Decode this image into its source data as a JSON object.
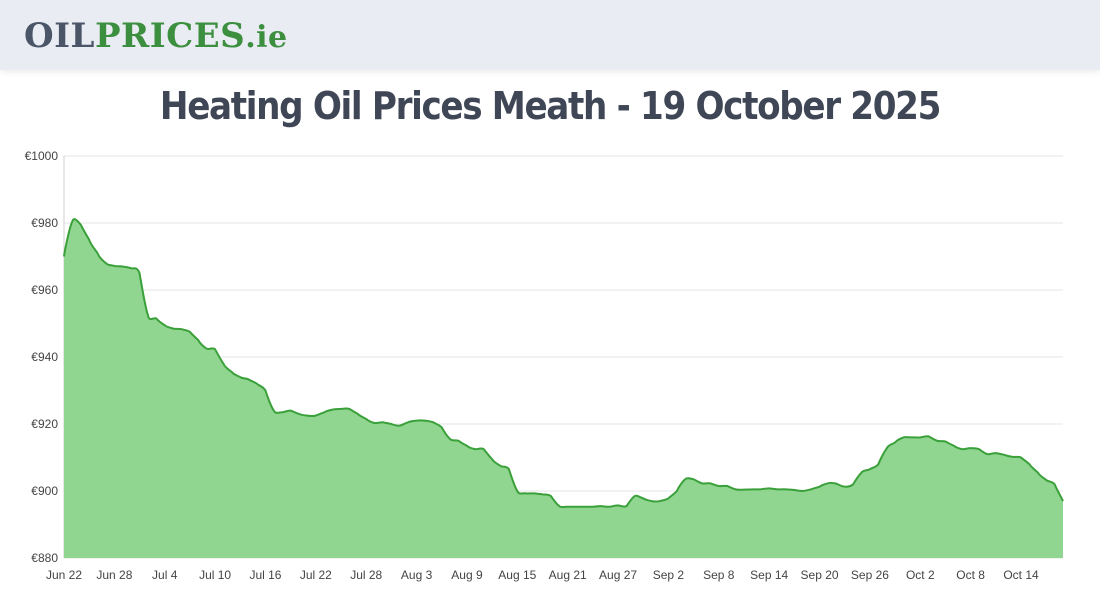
{
  "logo": {
    "part1": "OIL",
    "part2": "PRICES",
    "part3": ".ie"
  },
  "title": "Heating Oil Prices Meath - 19 October 2025",
  "colors": {
    "line": "#3aa03a",
    "fill": "#90d590",
    "grid": "#e6e6e6",
    "header_bg": "#e9ecf3"
  },
  "chart_data": {
    "type": "area",
    "title": "Heating Oil Prices Meath - 19 October 2025",
    "xlabel": "",
    "ylabel": "",
    "ylim": [
      880,
      1000
    ],
    "yticks": [
      880,
      900,
      920,
      940,
      960,
      980,
      1000
    ],
    "ytick_labels": [
      "€880",
      "€900",
      "€920",
      "€940",
      "€960",
      "€980",
      "€1000"
    ],
    "xticks": [
      {
        "day": 0,
        "label": "Jun 22"
      },
      {
        "day": 6,
        "label": "Jun 28"
      },
      {
        "day": 12,
        "label": "Jul 4"
      },
      {
        "day": 18,
        "label": "Jul 10"
      },
      {
        "day": 24,
        "label": "Jul 16"
      },
      {
        "day": 30,
        "label": "Jul 22"
      },
      {
        "day": 36,
        "label": "Jul 28"
      },
      {
        "day": 42,
        "label": "Aug 3"
      },
      {
        "day": 48,
        "label": "Aug 9"
      },
      {
        "day": 54,
        "label": "Aug 15"
      },
      {
        "day": 60,
        "label": "Aug 21"
      },
      {
        "day": 66,
        "label": "Aug 27"
      },
      {
        "day": 72,
        "label": "Sep 2"
      },
      {
        "day": 78,
        "label": "Sep 8"
      },
      {
        "day": 84,
        "label": "Sep 14"
      },
      {
        "day": 90,
        "label": "Sep 20"
      },
      {
        "day": 96,
        "label": "Sep 26"
      },
      {
        "day": 102,
        "label": "Oct 2"
      },
      {
        "day": 108,
        "label": "Oct 8"
      },
      {
        "day": 114,
        "label": "Oct 14"
      }
    ],
    "grid": true,
    "legend": false,
    "series": [
      {
        "x": [
          0,
          1,
          2,
          3,
          4,
          5,
          6,
          7,
          8,
          9,
          10,
          11,
          12,
          13,
          14,
          15,
          16,
          17,
          18,
          19,
          20,
          21,
          22,
          23,
          24,
          25,
          26,
          27,
          28,
          29,
          30,
          31,
          32,
          33,
          34,
          35,
          36,
          37,
          38,
          39,
          40,
          41,
          42,
          43,
          44,
          45,
          46,
          47,
          48,
          49,
          50,
          51,
          52,
          53,
          54,
          55,
          56,
          57,
          58,
          59,
          60,
          61,
          62,
          63,
          64,
          65,
          66,
          67,
          68,
          69,
          70,
          71,
          72,
          73,
          74,
          75,
          76,
          77,
          78,
          79,
          80,
          81,
          82,
          83,
          84,
          85,
          86,
          87,
          88,
          89,
          90,
          91,
          92,
          93,
          94,
          95,
          96,
          97,
          98,
          99,
          100,
          101,
          102,
          103,
          104,
          105,
          106,
          107,
          108,
          109,
          110,
          111,
          112,
          113,
          114,
          115,
          116,
          117,
          118,
          119
        ],
        "values": [
          970,
          980.5,
          979.5,
          975,
          971,
          968,
          967.2,
          967,
          966.5,
          965,
          952.5,
          951.5,
          949.5,
          948.5,
          948.3,
          947.5,
          945,
          942.5,
          942.3,
          938,
          935.5,
          934,
          933.3,
          932,
          930,
          924,
          923.5,
          924,
          923,
          922.5,
          922.5,
          923.5,
          924.3,
          924.5,
          924.5,
          923,
          921.5,
          920.3,
          920.5,
          920,
          919.5,
          920.5,
          921,
          921,
          920.5,
          919,
          915.5,
          915,
          913.5,
          912.5,
          912.5,
          909.5,
          907.5,
          906.5,
          900,
          899.3,
          899.3,
          899,
          898.5,
          895.5,
          895.3,
          895.3,
          895.3,
          895.3,
          895.5,
          895.3,
          895.7,
          895.5,
          898.5,
          897.8,
          897,
          897,
          897.8,
          900,
          903.5,
          903.5,
          902.3,
          902.3,
          901.5,
          901.5,
          900.5,
          900.4,
          900.5,
          900.5,
          900.8,
          900.5,
          900.5,
          900.3,
          900,
          900.5,
          901.3,
          902.3,
          902.2,
          901.3,
          902,
          905.5,
          906.5,
          908,
          912.7,
          914.5,
          916,
          916,
          916,
          916.3,
          915,
          914.8,
          913.5,
          912.5,
          912.8,
          912.5,
          911,
          911.3,
          910.8,
          910.2,
          910,
          908,
          905.5,
          903.3,
          902,
          897
        ]
      }
    ]
  }
}
